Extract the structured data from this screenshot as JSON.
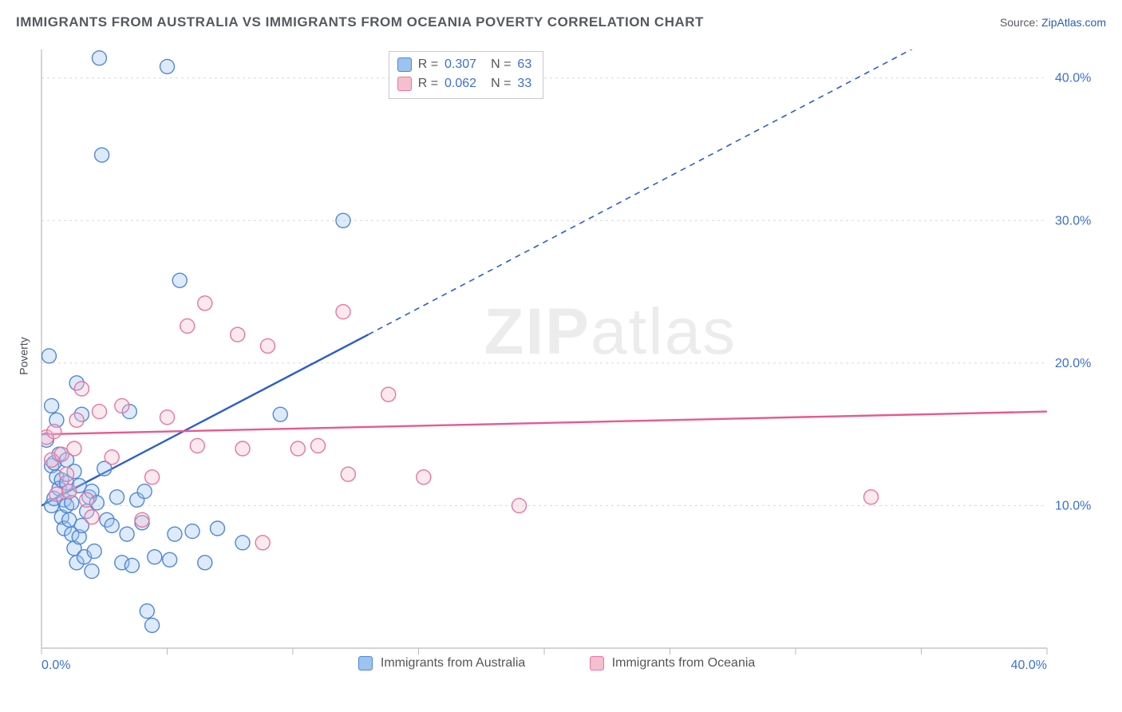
{
  "title": "IMMIGRANTS FROM AUSTRALIA VS IMMIGRANTS FROM OCEANIA POVERTY CORRELATION CHART",
  "source_prefix": "Source: ",
  "source_link": "ZipAtlas.com",
  "y_axis_label": "Poverty",
  "watermark_bold": "ZIP",
  "watermark_rest": "atlas",
  "chart": {
    "type": "scatter",
    "xlim": [
      0,
      40
    ],
    "ylim": [
      0,
      42
    ],
    "x_ticks": [
      0,
      5,
      10,
      15,
      20,
      25,
      30,
      35,
      40
    ],
    "x_tick_labels": {
      "0": "0.0%",
      "40": "40.0%"
    },
    "y_grid": [
      10,
      20,
      30,
      40
    ],
    "y_tick_labels": {
      "10": "10.0%",
      "20": "20.0%",
      "30": "30.0%",
      "40": "40.0%"
    },
    "background_color": "#ffffff",
    "grid_color": "#d8d8d8",
    "axis_number_color": "#3b6fd6",
    "marker_radius": 9,
    "series": [
      {
        "key": "australia",
        "label": "Immigrants from Australia",
        "fill": "#9dc3ee",
        "stroke": "#4f87d6",
        "R": "0.307",
        "N": "63",
        "trend": {
          "color": "#2a5dd0",
          "x1": 0,
          "y1": 10,
          "x2": 13,
          "y2": 22,
          "dash_to_x": 40,
          "dash_to_y": 47
        },
        "points": [
          [
            0.2,
            14.6
          ],
          [
            0.3,
            20.5
          ],
          [
            0.4,
            10.0
          ],
          [
            0.4,
            12.8
          ],
          [
            0.4,
            17.0
          ],
          [
            0.5,
            10.5
          ],
          [
            0.5,
            13.0
          ],
          [
            0.6,
            12.0
          ],
          [
            0.6,
            16.0
          ],
          [
            0.7,
            11.2
          ],
          [
            0.7,
            13.6
          ],
          [
            0.8,
            9.2
          ],
          [
            0.8,
            11.8
          ],
          [
            0.9,
            8.4
          ],
          [
            0.9,
            10.4
          ],
          [
            1.0,
            10.0
          ],
          [
            1.0,
            11.6
          ],
          [
            1.0,
            13.2
          ],
          [
            1.1,
            9.0
          ],
          [
            1.1,
            11.0
          ],
          [
            1.2,
            8.0
          ],
          [
            1.2,
            10.2
          ],
          [
            1.3,
            7.0
          ],
          [
            1.3,
            12.4
          ],
          [
            1.4,
            6.0
          ],
          [
            1.4,
            18.6
          ],
          [
            1.5,
            7.8
          ],
          [
            1.5,
            11.4
          ],
          [
            1.6,
            8.6
          ],
          [
            1.6,
            16.4
          ],
          [
            1.7,
            6.4
          ],
          [
            1.8,
            9.6
          ],
          [
            1.9,
            10.6
          ],
          [
            2.0,
            5.4
          ],
          [
            2.0,
            11.0
          ],
          [
            2.1,
            6.8
          ],
          [
            2.2,
            10.2
          ],
          [
            2.3,
            41.4
          ],
          [
            2.4,
            34.6
          ],
          [
            2.5,
            12.6
          ],
          [
            2.6,
            9.0
          ],
          [
            2.8,
            8.6
          ],
          [
            3.0,
            10.6
          ],
          [
            3.2,
            6.0
          ],
          [
            3.4,
            8.0
          ],
          [
            3.5,
            16.6
          ],
          [
            3.6,
            5.8
          ],
          [
            3.8,
            10.4
          ],
          [
            4.0,
            8.8
          ],
          [
            4.1,
            11.0
          ],
          [
            4.2,
            2.6
          ],
          [
            4.4,
            1.6
          ],
          [
            4.5,
            6.4
          ],
          [
            5.0,
            40.8
          ],
          [
            5.1,
            6.2
          ],
          [
            5.3,
            8.0
          ],
          [
            5.5,
            25.8
          ],
          [
            6.0,
            8.2
          ],
          [
            6.5,
            6.0
          ],
          [
            7.0,
            8.4
          ],
          [
            8.0,
            7.4
          ],
          [
            9.5,
            16.4
          ],
          [
            12.0,
            30.0
          ]
        ]
      },
      {
        "key": "oceania",
        "label": "Immigrants from Oceania",
        "fill": "#f6bfcf",
        "stroke": "#e875a0",
        "R": "0.062",
        "N": "33",
        "trend": {
          "color": "#e75a8e",
          "x1": 0,
          "y1": 15.0,
          "x2": 40,
          "y2": 16.6
        },
        "points": [
          [
            0.2,
            14.8
          ],
          [
            0.4,
            13.2
          ],
          [
            0.5,
            15.2
          ],
          [
            0.6,
            10.8
          ],
          [
            0.8,
            13.6
          ],
          [
            1.0,
            12.2
          ],
          [
            1.1,
            11.0
          ],
          [
            1.3,
            14.0
          ],
          [
            1.4,
            16.0
          ],
          [
            1.6,
            18.2
          ],
          [
            1.8,
            10.4
          ],
          [
            2.0,
            9.2
          ],
          [
            2.3,
            16.6
          ],
          [
            2.8,
            13.4
          ],
          [
            3.2,
            17.0
          ],
          [
            4.0,
            9.0
          ],
          [
            4.4,
            12.0
          ],
          [
            5.0,
            16.2
          ],
          [
            5.8,
            22.6
          ],
          [
            6.2,
            14.2
          ],
          [
            6.5,
            24.2
          ],
          [
            7.8,
            22.0
          ],
          [
            8.0,
            14.0
          ],
          [
            8.8,
            7.4
          ],
          [
            9.0,
            21.2
          ],
          [
            10.2,
            14.0
          ],
          [
            11.0,
            14.2
          ],
          [
            12.0,
            23.6
          ],
          [
            12.2,
            12.2
          ],
          [
            13.8,
            17.8
          ],
          [
            15.2,
            12.0
          ],
          [
            19.0,
            10.0
          ],
          [
            33.0,
            10.6
          ]
        ]
      }
    ]
  },
  "legend_box": {
    "rows": [
      {
        "swatch_fill": "#9dc3ee",
        "swatch_stroke": "#4f87d6",
        "r_label": "R =",
        "r_val": "0.307",
        "n_label": "N =",
        "n_val": "63"
      },
      {
        "swatch_fill": "#f6bfcf",
        "swatch_stroke": "#e875a0",
        "r_label": "R =",
        "r_val": "0.062",
        "n_label": "N =",
        "n_val": "33"
      }
    ]
  }
}
